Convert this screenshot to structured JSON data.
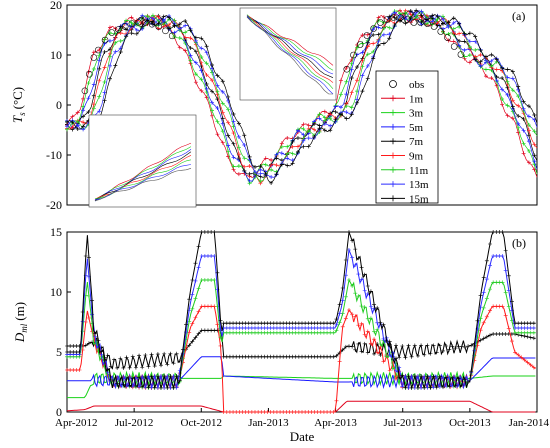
{
  "chart_data": [
    {
      "type": "line",
      "panel_label": "(a)",
      "ylabel": "T_s (°C)",
      "ylabel_main": "T",
      "ylabel_sub": "s",
      "ylabel_units": "(°C)",
      "ylim": [
        -20,
        20
      ],
      "yticks": [
        "20",
        "10",
        "0",
        "-10",
        "-20"
      ],
      "ytick_values": [
        20,
        10,
        0,
        -10,
        -20
      ],
      "xlim_months": [
        0,
        21
      ],
      "legend_position": "right",
      "legend": [
        "obs",
        "1m",
        "3m",
        "5m",
        "7m",
        "9m",
        "11m",
        "13m",
        "15m"
      ],
      "series_colors": {
        "obs": "#000000",
        "1m": "#e0001b",
        "3m": "#19d219",
        "5m": "#1a1aff",
        "7m": "#000000",
        "9m": "#ff1a1a",
        "11m": "#22cc22",
        "13m": "#2a2aff",
        "15m": "#000000"
      },
      "temperature_profile": {
        "x_months": [
          0,
          0.3,
          0.6,
          0.9,
          1.2,
          1.6,
          2,
          2.5,
          3,
          3.6,
          4.2,
          4.8,
          5.2,
          5.6,
          6,
          6.4,
          6.8,
          7.2,
          7.6,
          8,
          8.5,
          9,
          9.5,
          10,
          10.5,
          11,
          11.5,
          12,
          12.3,
          12.6,
          13,
          13.5,
          14,
          14.5,
          15,
          15.5,
          16,
          16.5,
          17,
          17.5,
          18,
          18.5,
          19,
          19.5,
          20,
          20.5,
          21
        ],
        "y_celsius": [
          -4,
          -3,
          0,
          5,
          10,
          13,
          15,
          16,
          17,
          17,
          16,
          14,
          11,
          7,
          3,
          -1,
          -6,
          -11,
          -13,
          -15,
          -13,
          -11,
          -9,
          -6,
          -5,
          -3,
          -2,
          0,
          5,
          9,
          12,
          15,
          17,
          18,
          18,
          17,
          17,
          16,
          14,
          11,
          9,
          8,
          5,
          0,
          -4,
          -10,
          -15
        ]
      },
      "depth_lag_months": {
        "1m": 0,
        "3m": 0.15,
        "5m": 0.3,
        "7m": 0.45,
        "9m": 0.6,
        "11m": 0.75,
        "13m": 0.9,
        "15m": 1.05
      },
      "obs_circles_months": [
        0.8,
        1.0,
        1.2,
        1.4,
        1.7,
        2.0,
        2.3,
        2.6,
        2.9,
        3.2,
        3.5,
        3.8,
        4.1,
        4.4,
        4.7,
        12.5,
        12.8,
        13.1,
        13.4,
        13.7,
        14.0,
        14.3,
        14.6,
        14.9,
        15.2,
        15.5,
        15.8,
        16.1,
        16.4,
        16.7,
        17.0,
        17.3,
        17.6
      ]
    },
    {
      "type": "line",
      "panel_label": "(b)",
      "ylabel": "D_ml (m)",
      "ylabel_main": "D",
      "ylabel_sub": "ml",
      "ylabel_units": "(m)",
      "xlabel": "Date",
      "ylim": [
        0,
        15
      ],
      "yticks": [
        "15",
        "10",
        "5",
        "0"
      ],
      "ytick_values": [
        15,
        10,
        5,
        0
      ],
      "xlim_months": [
        0,
        21
      ],
      "xtick_labels": [
        "Apr-2012",
        "Jul-2012",
        "Oct-2012",
        "Jan-2013",
        "Apr-2013",
        "Jul-2013",
        "Oct-2013",
        "Jan-2014"
      ],
      "xtick_months": [
        0,
        3,
        6,
        9,
        12,
        15,
        18,
        21
      ],
      "series": [
        {
          "name": "1m",
          "color": "#e0001b",
          "x": [
            0,
            0.8,
            1.2,
            2,
            5,
            6,
            7,
            12,
            12.5,
            15,
            18,
            19,
            19.5,
            20,
            21
          ],
          "y": [
            0.1,
            0.2,
            0.5,
            0.5,
            0.5,
            0.5,
            0,
            0,
            0.9,
            0.9,
            0.9,
            0,
            0,
            0,
            0
          ]
        },
        {
          "name": "3m",
          "color": "#19d219",
          "x": [
            0,
            0.8,
            1.2,
            2,
            5,
            6,
            6.9,
            7,
            12,
            12.5,
            15,
            18,
            19,
            19.5,
            20,
            21
          ],
          "y": [
            1.2,
            1.2,
            2.8,
            2.8,
            2.8,
            2.8,
            2.8,
            3.0,
            2.8,
            2.8,
            2.8,
            2.8,
            3.0,
            3.0,
            3.0,
            3.0
          ]
        },
        {
          "name": "5m",
          "color": "#1a1aff",
          "x": [
            0,
            0.8,
            1.2,
            2,
            5,
            6,
            6.9,
            7,
            9,
            12,
            12.5,
            15,
            18,
            19,
            19.5,
            20,
            21
          ],
          "y": [
            2.6,
            2.6,
            2.6,
            2.6,
            2.6,
            4.6,
            4.6,
            3.0,
            2.8,
            2.5,
            2.5,
            2.6,
            2.6,
            4.5,
            4.5,
            4.5,
            4.5
          ]
        },
        {
          "name": "7m",
          "color": "#000000",
          "x": [
            0,
            0.8,
            1.2,
            2,
            5,
            6,
            6.9,
            7,
            9,
            12,
            12.5,
            15,
            18,
            19,
            19.5,
            20,
            21
          ],
          "y": [
            5.5,
            5.5,
            6.0,
            4.0,
            4.5,
            6.8,
            6.8,
            4.6,
            4.6,
            4.6,
            5.5,
            5.0,
            5.5,
            6.5,
            6.5,
            6.5,
            6.1
          ]
        },
        {
          "name": "9m",
          "color": "#ff1a1a",
          "x": [
            0,
            0.6,
            0.9,
            1.2,
            2,
            5,
            5.5,
            6,
            6.6,
            6.9,
            7,
            12,
            12.3,
            12.6,
            15,
            18,
            18.5,
            19,
            19.5,
            20,
            21
          ],
          "y": [
            3.5,
            3.5,
            8.5,
            6.0,
            2.5,
            2.5,
            7.0,
            8.8,
            8.8,
            5.0,
            0,
            0,
            7.0,
            8.5,
            2.5,
            2.5,
            7.0,
            8.8,
            8.8,
            5.0,
            3.5
          ]
        },
        {
          "name": "11m",
          "color": "#22cc22",
          "x": [
            0,
            0.6,
            0.9,
            1.2,
            2,
            5,
            5.5,
            6,
            6.6,
            6.9,
            7,
            9,
            12,
            12.3,
            12.6,
            15,
            18,
            18.5,
            19,
            19.5,
            20,
            21
          ],
          "y": [
            4.6,
            4.6,
            11.0,
            6.0,
            2.5,
            2.5,
            8.0,
            11.0,
            11.0,
            5.5,
            6.6,
            6.6,
            6.6,
            8.0,
            11.0,
            2.5,
            2.5,
            8.0,
            10.8,
            10.8,
            6.6,
            6.6
          ]
        },
        {
          "name": "13m",
          "color": "#2a2aff",
          "x": [
            0,
            0.6,
            0.9,
            1.2,
            2,
            5,
            5.5,
            6,
            6.6,
            6.9,
            7,
            9,
            12,
            12.3,
            12.6,
            15,
            18,
            18.5,
            19,
            19.5,
            20,
            21
          ],
          "y": [
            4.8,
            4.8,
            13.0,
            6.5,
            2.5,
            2.5,
            9.0,
            13.0,
            13.0,
            6.0,
            7.0,
            7.0,
            7.0,
            9.0,
            13.5,
            2.5,
            2.5,
            9.0,
            13.0,
            13.0,
            7.0,
            7.0
          ]
        },
        {
          "name": "15m",
          "color": "#000000",
          "x": [
            0,
            0.6,
            0.9,
            1.2,
            2,
            5,
            5.5,
            6,
            6.6,
            6.9,
            7,
            9,
            12,
            12.3,
            12.6,
            15,
            18,
            18.5,
            19,
            19.5,
            20,
            21
          ],
          "y": [
            5.0,
            5.0,
            15.0,
            7.0,
            2.5,
            2.5,
            10.0,
            15.0,
            15.0,
            6.5,
            7.4,
            7.4,
            7.4,
            10.0,
            15.0,
            2.5,
            2.5,
            10.0,
            15.0,
            15.0,
            7.4,
            7.4
          ]
        }
      ]
    }
  ]
}
